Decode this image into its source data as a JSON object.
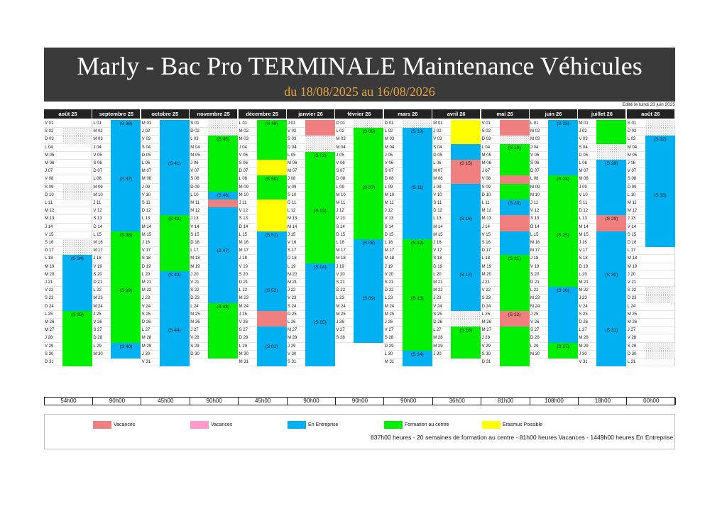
{
  "header": {
    "title": "Marly - Bac Pro TERMINALE Maintenance Véhicules",
    "subtitle": "du 18/08/2025 au 16/08/2026",
    "edited": "Edité le lundi 23 juin 2025"
  },
  "colors": {
    "vacances": "#f08080",
    "vacances_alt": "#ff99cc",
    "entreprise": "#00b0f0",
    "centre": "#00ee00",
    "erasmus": "#ffff00"
  },
  "months": [
    {
      "name": "août 25",
      "days": [
        "V 01",
        "S 02",
        "D 03",
        "L 04",
        "M 05",
        "M 06",
        "J 07",
        "V 08",
        "S 09",
        "D 10",
        "L 11",
        "M 12",
        "M 13",
        "J 14",
        "V 15",
        "S 16",
        "D 17",
        "L 18",
        "M 19",
        "M 20",
        "J 21",
        "V 22",
        "S 23",
        "D 24",
        "L 25",
        "M 26",
        "M 27",
        "J 28",
        "V 29",
        "S 30",
        "D 31"
      ],
      "weeks": [
        {
          "label": "(S 34)",
          "day": 18
        },
        {
          "label": "(S 35)",
          "day": 25
        }
      ],
      "total": "54h00"
    },
    {
      "name": "septembre 25",
      "days": [
        "L 01",
        "M 02",
        "M 03",
        "J 04",
        "V 05",
        "S 06",
        "D 07",
        "L 08",
        "M 09",
        "M 10",
        "J 11",
        "V 12",
        "S 13",
        "D 14",
        "L 15",
        "M 16",
        "M 17",
        "J 18",
        "V 19",
        "S 20",
        "D 21",
        "L 22",
        "M 23",
        "M 24",
        "J 25",
        "V 26",
        "S 27",
        "D 28",
        "L 29",
        "M 30"
      ],
      "weeks": [
        {
          "label": "(S 36)",
          "day": 1
        },
        {
          "label": "(S 37)",
          "day": 8
        },
        {
          "label": "(S 38)",
          "day": 15
        },
        {
          "label": "(S 39)",
          "day": 22
        },
        {
          "label": "(S 40)",
          "day": 29
        }
      ],
      "total": "90h00"
    },
    {
      "name": "octobre 25",
      "days": [
        "M 01",
        "J 02",
        "V 03",
        "S 04",
        "D 05",
        "L 06",
        "M 07",
        "M 08",
        "J 09",
        "V 10",
        "S 11",
        "D 12",
        "L 13",
        "M 14",
        "M 15",
        "J 16",
        "V 17",
        "S 18",
        "D 19",
        "L 20",
        "M 21",
        "M 22",
        "J 23",
        "V 24",
        "S 25",
        "D 26",
        "L 27",
        "M 28",
        "M 29",
        "J 30",
        "V 31"
      ],
      "weeks": [
        {
          "label": "(S 41)",
          "day": 6
        },
        {
          "label": "(S 42)",
          "day": 13
        },
        {
          "label": "(S 43)",
          "day": 20
        },
        {
          "label": "(S 44)",
          "day": 27
        }
      ],
      "total": "45h00"
    },
    {
      "name": "novembre 25",
      "days": [
        "S 01",
        "D 02",
        "L 03",
        "M 04",
        "M 05",
        "J 06",
        "V 07",
        "S 08",
        "D 09",
        "L 10",
        "M 11",
        "M 12",
        "J 13",
        "V 14",
        "S 15",
        "D 16",
        "L 17",
        "M 18",
        "M 19",
        "J 20",
        "V 21",
        "S 22",
        "D 23",
        "L 24",
        "M 25",
        "M 26",
        "J 27",
        "V 28",
        "S 29",
        "D 30"
      ],
      "weeks": [
        {
          "label": "(S 45)",
          "day": 3
        },
        {
          "label": "(S 46)",
          "day": 10
        },
        {
          "label": "(S 47)",
          "day": 17
        },
        {
          "label": "(S 48)",
          "day": 24
        }
      ],
      "total": "90h00"
    },
    {
      "name": "décembre 25",
      "days": [
        "L 01",
        "M 02",
        "M 03",
        "J 04",
        "V 05",
        "S 06",
        "D 07",
        "L 08",
        "M 09",
        "M 10",
        "J 11",
        "V 12",
        "S 13",
        "D 14",
        "L 15",
        "M 16",
        "M 17",
        "J 18",
        "V 19",
        "S 20",
        "D 21",
        "L 22",
        "M 23",
        "M 24",
        "J 25",
        "V 26",
        "S 27",
        "D 28",
        "L 29",
        "M 30",
        "M 31"
      ],
      "weeks": [
        {
          "label": "(S 49)",
          "day": 1
        },
        {
          "label": "(S 50)",
          "day": 8
        },
        {
          "label": "(S 51)",
          "day": 15
        },
        {
          "label": "(S 52)",
          "day": 22
        },
        {
          "label": "(S 01)",
          "day": 29
        }
      ],
      "total": "45h00"
    },
    {
      "name": "janvier 26",
      "days": [
        "J 01",
        "V 02",
        "S 03",
        "D 04",
        "L 05",
        "M 06",
        "M 07",
        "J 08",
        "V 09",
        "S 10",
        "D 11",
        "L 12",
        "M 13",
        "M 14",
        "J 15",
        "V 16",
        "S 17",
        "D 18",
        "L 19",
        "M 20",
        "M 21",
        "J 22",
        "V 23",
        "S 24",
        "D 25",
        "L 26",
        "M 27",
        "M 28",
        "J 29",
        "V 30",
        "S 31"
      ],
      "weeks": [
        {
          "label": "(S 02)",
          "day": 5
        },
        {
          "label": "(S 03)",
          "day": 12
        },
        {
          "label": "(S 04)",
          "day": 19
        },
        {
          "label": "(S 05)",
          "day": 26
        }
      ],
      "total": "90h00"
    },
    {
      "name": "février 26",
      "days": [
        "D 01",
        "L 02",
        "M 03",
        "M 04",
        "J 05",
        "V 06",
        "S 07",
        "D 08",
        "L 09",
        "M 10",
        "M 11",
        "J 12",
        "V 13",
        "S 14",
        "D 15",
        "L 16",
        "M 17",
        "M 18",
        "J 19",
        "V 20",
        "S 21",
        "D 22",
        "L 23",
        "M 24",
        "M 25",
        "J 26",
        "V 27",
        "S 28"
      ],
      "weeks": [
        {
          "label": "(S 06)",
          "day": 2
        },
        {
          "label": "(S 07)",
          "day": 9
        },
        {
          "label": "(S 08)",
          "day": 16
        },
        {
          "label": "(S 09)",
          "day": 23
        }
      ],
      "total": "90h00"
    },
    {
      "name": "mars 26",
      "days": [
        "D 01",
        "L 02",
        "M 03",
        "M 04",
        "J 05",
        "V 06",
        "S 07",
        "D 08",
        "L 09",
        "M 10",
        "M 11",
        "J 12",
        "V 13",
        "S 14",
        "D 15",
        "L 16",
        "M 17",
        "M 18",
        "J 19",
        "V 20",
        "S 21",
        "D 22",
        "L 23",
        "M 24",
        "M 25",
        "J 26",
        "V 27",
        "S 28",
        "D 29",
        "L 30",
        "M 31"
      ],
      "weeks": [
        {
          "label": "(S 10)",
          "day": 2
        },
        {
          "label": "(S 11)",
          "day": 9
        },
        {
          "label": "(S 12)",
          "day": 16
        },
        {
          "label": "(S 13)",
          "day": 23
        },
        {
          "label": "(S 14)",
          "day": 30
        }
      ],
      "total": "90h00"
    },
    {
      "name": "avril 26",
      "days": [
        "M 01",
        "J 02",
        "V 03",
        "S 04",
        "D 05",
        "L 06",
        "M 07",
        "M 08",
        "J 09",
        "V 10",
        "S 11",
        "D 12",
        "L 13",
        "M 14",
        "M 15",
        "J 16",
        "V 17",
        "S 18",
        "D 19",
        "L 20",
        "M 21",
        "M 22",
        "J 23",
        "V 24",
        "S 25",
        "D 26",
        "L 27",
        "M 28",
        "M 29",
        "J 30"
      ],
      "weeks": [
        {
          "label": "(S 15)",
          "day": 6
        },
        {
          "label": "(S 16)",
          "day": 13
        },
        {
          "label": "(S 17)",
          "day": 20
        },
        {
          "label": "(S 18)",
          "day": 27
        }
      ],
      "total": "36h00"
    },
    {
      "name": "mai 26",
      "days": [
        "V 01",
        "S 02",
        "D 03",
        "L 04",
        "M 05",
        "M 06",
        "J 07",
        "V 08",
        "S 09",
        "D 10",
        "L 11",
        "M 12",
        "M 13",
        "J 14",
        "V 15",
        "S 16",
        "D 17",
        "L 18",
        "M 19",
        "M 20",
        "J 21",
        "V 22",
        "S 23",
        "D 24",
        "L 25",
        "M 26",
        "M 27",
        "J 28",
        "V 29",
        "S 30",
        "D 31"
      ],
      "weeks": [
        {
          "label": "(S 19)",
          "day": 4
        },
        {
          "label": "(S 20)",
          "day": 11
        },
        {
          "label": "(S 21)",
          "day": 18
        },
        {
          "label": "(S 22)",
          "day": 25
        }
      ],
      "total": "81h00"
    },
    {
      "name": "juin 26",
      "days": [
        "L 01",
        "M 02",
        "M 03",
        "J 04",
        "V 05",
        "S 06",
        "D 07",
        "L 08",
        "M 09",
        "M 10",
        "J 11",
        "V 12",
        "S 13",
        "D 14",
        "L 15",
        "M 16",
        "M 17",
        "J 18",
        "V 19",
        "S 20",
        "D 21",
        "L 22",
        "M 23",
        "M 24",
        "J 25",
        "V 26",
        "S 27",
        "D 28",
        "L 29",
        "M 30"
      ],
      "weeks": [
        {
          "label": "(S 23)",
          "day": 1
        },
        {
          "label": "(S 24)",
          "day": 8
        },
        {
          "label": "(S 25)",
          "day": 15
        },
        {
          "label": "(S 26)",
          "day": 22
        },
        {
          "label": "(S 27)",
          "day": 29
        }
      ],
      "total": "108h00"
    },
    {
      "name": "juillet 26",
      "days": [
        "M 01",
        "J 02",
        "V 03",
        "S 04",
        "D 05",
        "L 06",
        "M 07",
        "M 08",
        "J 09",
        "V 10",
        "S 11",
        "D 12",
        "L 13",
        "M 14",
        "M 15",
        "J 16",
        "V 17",
        "S 18",
        "D 19",
        "L 20",
        "M 21",
        "M 22",
        "J 23",
        "V 24",
        "S 25",
        "D 26",
        "L 27",
        "M 28",
        "M 29",
        "J 30",
        "V 31"
      ],
      "weeks": [
        {
          "label": "(S 28)",
          "day": 6
        },
        {
          "label": "(S 29)",
          "day": 13
        },
        {
          "label": "(S 30)",
          "day": 20
        },
        {
          "label": "(S 31)",
          "day": 27
        }
      ],
      "total": "18h00"
    },
    {
      "name": "août 26",
      "days": [
        "S 01",
        "D 02",
        "L 03",
        "M 04",
        "M 05",
        "J 06",
        "V 07",
        "S 08",
        "D 09",
        "L 10",
        "M 11",
        "M 12",
        "J 13",
        "V 14",
        "S 15",
        "D 16",
        "L 17",
        "M 18",
        "M 19",
        "J 20",
        "V 21",
        "S 22",
        "D 23",
        "L 24",
        "M 25",
        "M 26",
        "J 27",
        "V 28",
        "S 29",
        "D 30",
        "L 31"
      ],
      "weeks": [
        {
          "label": "(S 32)",
          "day": 3
        },
        {
          "label": "(S 33)",
          "day": 10
        }
      ],
      "total": "00h00"
    }
  ],
  "legend": [
    {
      "label": "Vacances",
      "color": "#f08080"
    },
    {
      "label": "Vacances",
      "color": "#ff99cc"
    },
    {
      "label": "En Entreprise",
      "color": "#00b0f0"
    },
    {
      "label": "Formation au centre",
      "color": "#00ee00"
    },
    {
      "label": "Erasmus Possible",
      "color": "#ffff00"
    }
  ],
  "summary": "837h00 heures - 20 semaines de formation au centre - 81h00 heures Vacances - 1449h00 heures En Entreprise"
}
